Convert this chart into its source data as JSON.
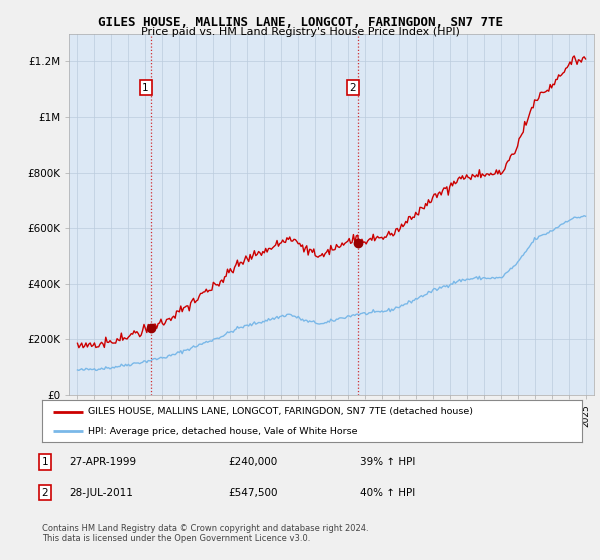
{
  "title": "GILES HOUSE, MALLINS LANE, LONGCOT, FARINGDON, SN7 7TE",
  "subtitle": "Price paid vs. HM Land Registry's House Price Index (HPI)",
  "ylim": [
    0,
    1300000
  ],
  "yticks": [
    0,
    200000,
    400000,
    600000,
    800000,
    1000000,
    1200000
  ],
  "ytick_labels": [
    "£0",
    "£200K",
    "£400K",
    "£600K",
    "£800K",
    "£1M",
    "£1.2M"
  ],
  "legend_line1": "GILES HOUSE, MALLINS LANE, LONGCOT, FARINGDON, SN7 7TE (detached house)",
  "legend_line2": "HPI: Average price, detached house, Vale of White Horse",
  "sale1_date": "27-APR-1999",
  "sale1_price": "£240,000",
  "sale1_hpi": "39% ↑ HPI",
  "sale1_year": 1999.32,
  "sale1_value": 240000,
  "sale2_date": "28-JUL-2011",
  "sale2_price": "£547,500",
  "sale2_hpi": "40% ↑ HPI",
  "sale2_year": 2011.56,
  "sale2_value": 547500,
  "hpi_color": "#7ab8e8",
  "price_color": "#cc0000",
  "marker_color": "#990000",
  "plot_bg_color": "#dce8f5",
  "grid_color": "#bbccdd",
  "legend_bg": "#ffffff",
  "legend_border": "#aaaaaa",
  "footer_text": "Contains HM Land Registry data © Crown copyright and database right 2024.\nThis data is licensed under the Open Government Licence v3.0.",
  "hpi_anchors_x": [
    1995.0,
    1997.0,
    1999.0,
    2000.5,
    2002.0,
    2003.5,
    2004.5,
    2006.0,
    2007.5,
    2008.5,
    2009.5,
    2010.5,
    2011.5,
    2012.5,
    2013.5,
    2014.5,
    2016.0,
    2017.5,
    2018.5,
    2020.0,
    2021.0,
    2022.0,
    2023.0,
    2024.0,
    2025.0
  ],
  "hpi_anchors_y": [
    88000,
    98000,
    120000,
    140000,
    175000,
    210000,
    240000,
    265000,
    290000,
    265000,
    255000,
    275000,
    290000,
    295000,
    305000,
    330000,
    375000,
    410000,
    420000,
    420000,
    475000,
    560000,
    590000,
    630000,
    645000
  ]
}
